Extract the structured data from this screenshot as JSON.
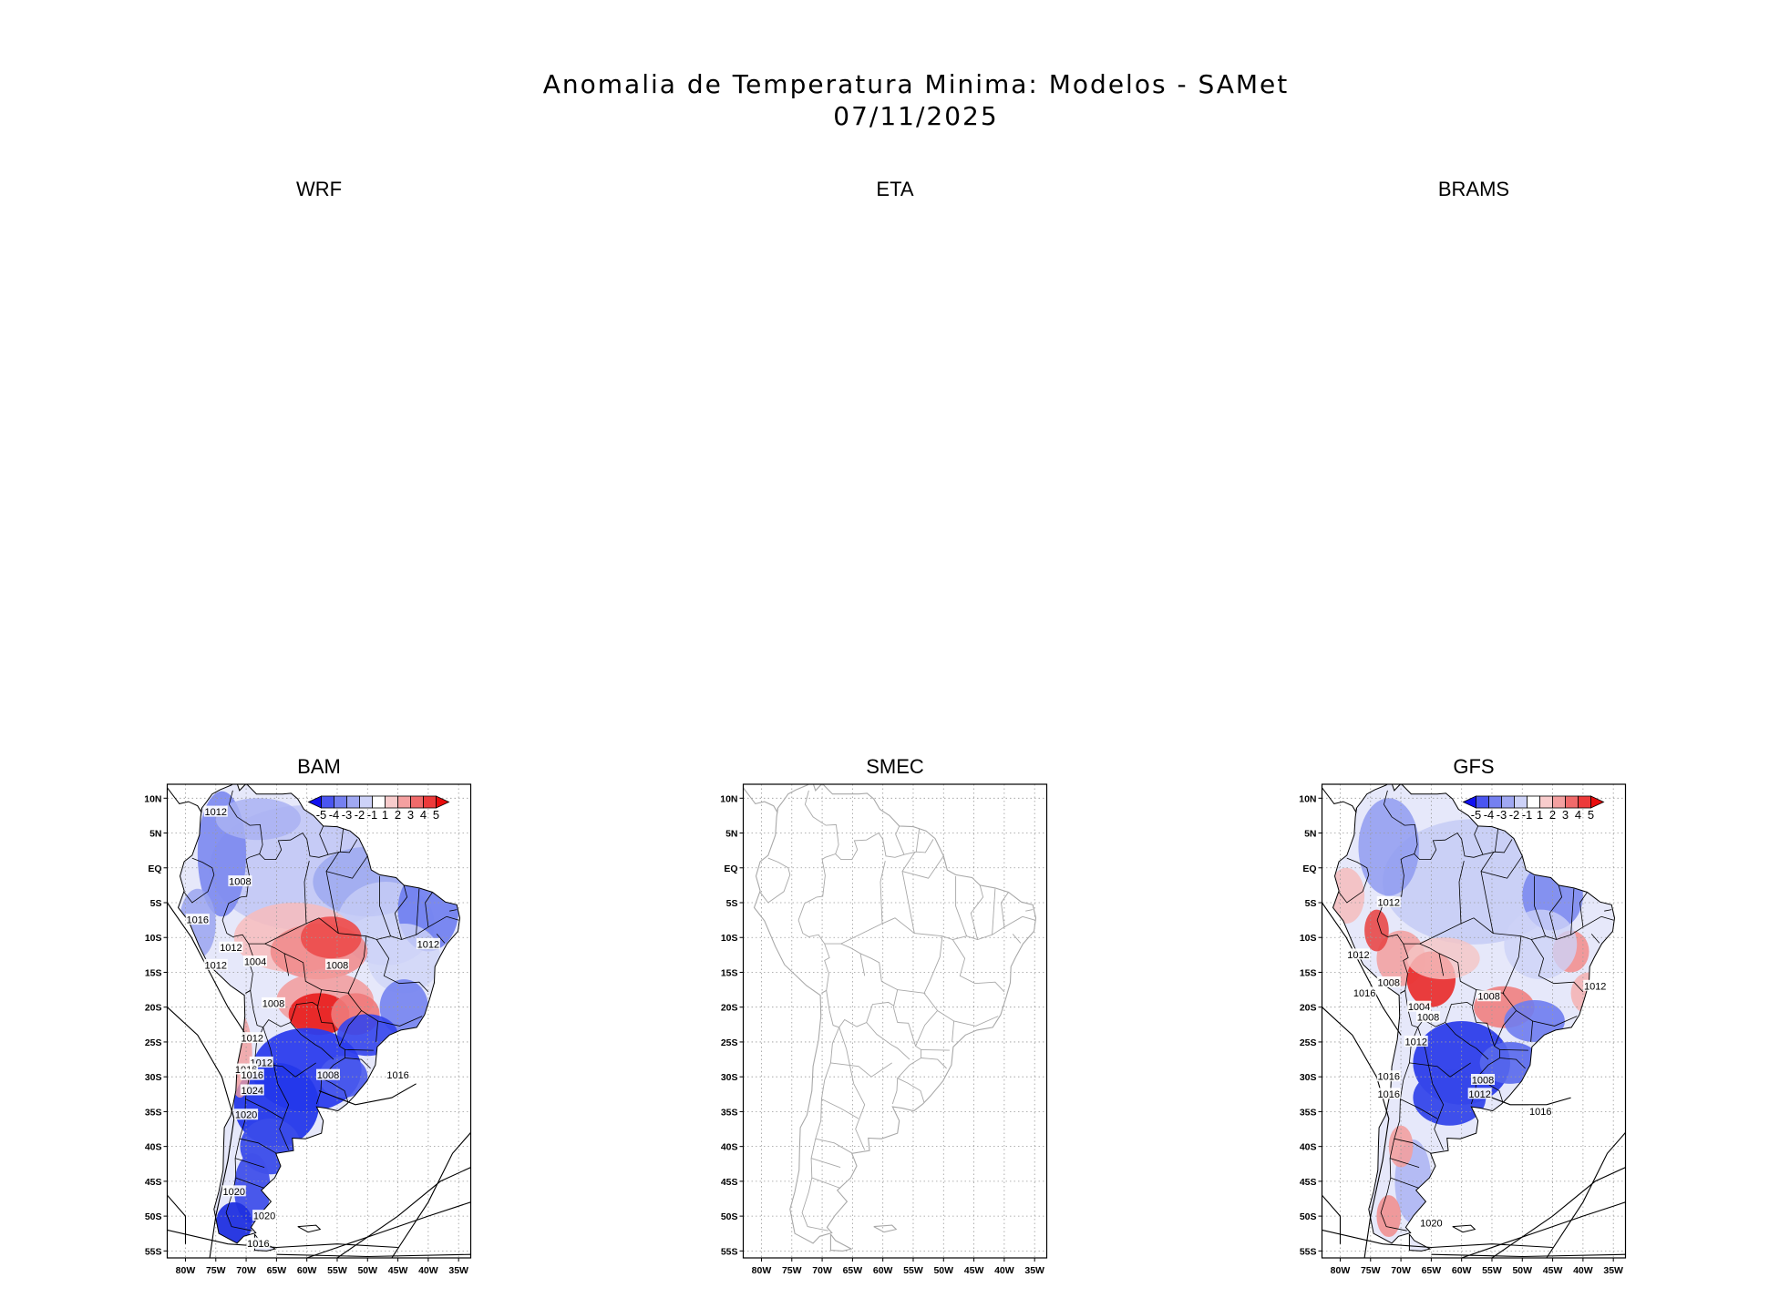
{
  "figure": {
    "title": "Anomalia de Temperatura Minima: Modelos - SAMet",
    "date": "07/11/2025"
  },
  "panels": [
    {
      "name": "WRF",
      "has_map": false
    },
    {
      "name": "ETA",
      "has_map": false
    },
    {
      "name": "BRAMS",
      "has_map": false
    },
    {
      "name": "BAM",
      "has_map": true,
      "has_colorbar": true,
      "isobar_labels": [
        "1012",
        "1008",
        "1016",
        "1012",
        "1004",
        "1012",
        "1008",
        "1008",
        "1012",
        "1012",
        "1012",
        "1016",
        "1016",
        "1008",
        "1016",
        "1024",
        "1020",
        "1020",
        "1020",
        "1016"
      ]
    },
    {
      "name": "SMEC",
      "has_map": true,
      "has_colorbar": false,
      "isobar_labels": []
    },
    {
      "name": "GFS",
      "has_map": true,
      "has_colorbar": true,
      "isobar_labels": [
        "1012",
        "1012",
        "1008",
        "1016",
        "1004",
        "1008",
        "1008",
        "1012",
        "1012",
        "1016",
        "1008",
        "1016",
        "1012",
        "1016",
        "1020"
      ]
    }
  ],
  "axes": {
    "lat_ticks": [
      "10N",
      "5N",
      "EQ",
      "5S",
      "10S",
      "15S",
      "20S",
      "25S",
      "30S",
      "35S",
      "40S",
      "45S",
      "50S",
      "55S"
    ],
    "lon_ticks": [
      "80W",
      "75W",
      "70W",
      "65W",
      "60W",
      "55W",
      "50W",
      "45W",
      "40W",
      "35W"
    ],
    "lat_range": [
      -56,
      12
    ],
    "lon_range": [
      -83,
      -33
    ]
  },
  "colorbar": {
    "labels": [
      "-5",
      "-4",
      "-3",
      "-2",
      "-1",
      "1",
      "2",
      "3",
      "4",
      "5"
    ],
    "colors": [
      "#1010f0",
      "#4a55f0",
      "#7580f0",
      "#a0a8f2",
      "#cdd2f8",
      "#ffffff",
      "#f8cccc",
      "#f4a0a0",
      "#f06a6a",
      "#ec3a3a",
      "#e80c0c"
    ]
  },
  "colors": {
    "cold_strong": "#1a2ee8",
    "cold_light": "#b9c2f5",
    "warm_strong": "#e81818",
    "warm_light": "#f7bcbc",
    "grid": "#9a9a9a",
    "coast_smec": "#a8a8a8"
  }
}
